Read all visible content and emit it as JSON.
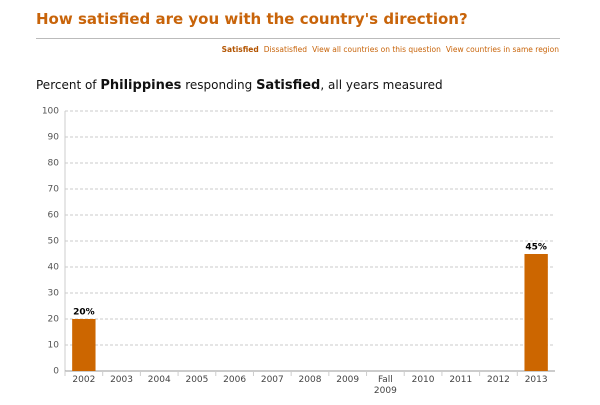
{
  "header": {
    "title": "How satisfied are you with the country's direction?",
    "links": [
      "Satisfied",
      "Dissatisfied",
      "View all countries on this question",
      "View countries in same region"
    ]
  },
  "chart_data": {
    "type": "bar",
    "subtitle": [
      "Percent of ",
      "Philippines",
      " responding ",
      "Satisfied",
      ", all years measured"
    ],
    "categories": [
      "2002",
      "2003",
      "2004",
      "2005",
      "2006",
      "2007",
      "2008",
      "2009",
      "Fall 2009",
      "2010",
      "2011",
      "2012",
      "2013"
    ],
    "values": [
      20,
      null,
      null,
      null,
      null,
      null,
      null,
      null,
      null,
      null,
      null,
      null,
      45
    ],
    "value_labels": [
      "20%",
      null,
      null,
      null,
      null,
      null,
      null,
      null,
      null,
      null,
      null,
      null,
      "45%"
    ],
    "color": "#cc6600",
    "ylim": [
      0,
      100
    ],
    "yticks": [
      0,
      10,
      20,
      30,
      40,
      50,
      60,
      70,
      80,
      90,
      100
    ],
    "grid": true
  }
}
